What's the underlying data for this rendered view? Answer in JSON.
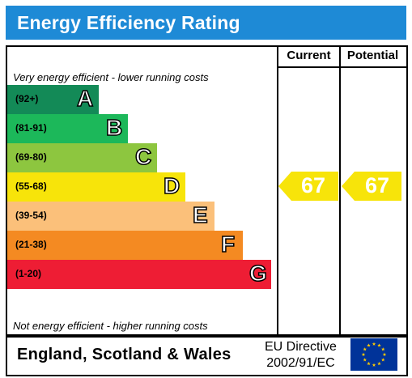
{
  "title": "Energy Efficiency Rating",
  "columns": {
    "current": "Current",
    "potential": "Potential"
  },
  "notes": {
    "top": "Very energy efficient - lower running costs",
    "bottom": "Not energy efficient - higher running costs"
  },
  "bands": [
    {
      "range": "(92+)",
      "letter": "A",
      "color": "#138a57"
    },
    {
      "range": "(81-91)",
      "letter": "B",
      "color": "#1cb85a"
    },
    {
      "range": "(69-80)",
      "letter": "C",
      "color": "#8dc63f"
    },
    {
      "range": "(55-68)",
      "letter": "D",
      "color": "#f7e40a"
    },
    {
      "range": "(39-54)",
      "letter": "E",
      "color": "#fbc07a"
    },
    {
      "range": "(21-38)",
      "letter": "F",
      "color": "#f48a22"
    },
    {
      "range": "(1-20)",
      "letter": "G",
      "color": "#ee1d34"
    }
  ],
  "ratings": {
    "current": {
      "value": "67",
      "color": "#f7e40a"
    },
    "potential": {
      "value": "67",
      "color": "#f7e40a"
    }
  },
  "footer": {
    "region": "England, Scotland & Wales",
    "directive_line1": "EU Directive",
    "directive_line2": "2002/91/EC",
    "flag_icon": "eu-flag-icon",
    "flag_color": "#003399",
    "star_color": "#ffcc00"
  }
}
